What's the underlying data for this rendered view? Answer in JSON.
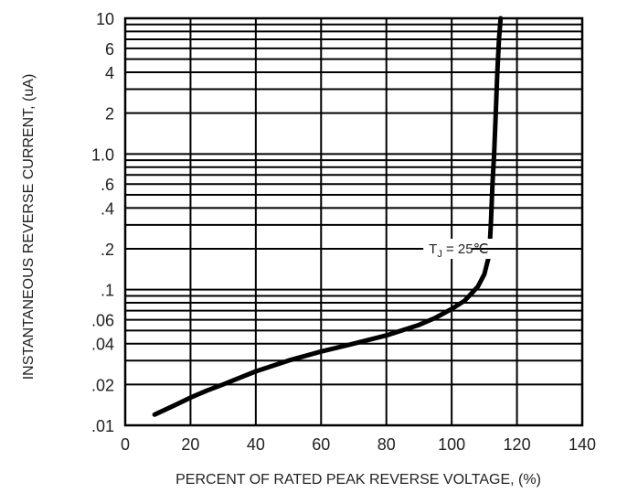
{
  "chart_data": {
    "type": "line",
    "title": "",
    "xlabel": "PERCENT OF RATED PEAK REVERSE VOLTAGE, (%)",
    "ylabel": "INSTANTANEOUS REVERSE CURRENT, (uA)",
    "xscale": "linear",
    "yscale": "log",
    "xlim": [
      0,
      140
    ],
    "ylim": [
      0.01,
      10
    ],
    "grid": true,
    "x_ticks": [
      0,
      20,
      40,
      60,
      80,
      100,
      120,
      140
    ],
    "x_tick_labels": [
      "0",
      "20",
      "40",
      "60",
      "80",
      "100",
      "120",
      "140"
    ],
    "y_ticks": [
      0.01,
      0.02,
      0.04,
      0.06,
      0.1,
      0.2,
      0.4,
      0.6,
      1.0,
      2,
      4,
      6,
      10
    ],
    "y_tick_labels": [
      ".01",
      ".02",
      ".04",
      ".06",
      ".1",
      ".2",
      ".4",
      ".6",
      "1.0",
      "2",
      "4",
      "6",
      "10"
    ],
    "y_grid_lines": [
      0.01,
      0.02,
      0.03,
      0.04,
      0.05,
      0.06,
      0.07,
      0.08,
      0.09,
      0.1,
      0.2,
      0.3,
      0.4,
      0.5,
      0.6,
      0.7,
      0.8,
      0.9,
      1.0,
      2,
      3,
      4,
      5,
      6,
      7,
      8,
      9,
      10
    ],
    "series": [
      {
        "x": [
          9,
          15,
          20,
          25,
          30,
          40,
          50,
          60,
          70,
          80,
          90,
          95,
          100,
          104,
          108,
          110,
          111.5,
          112,
          112.5,
          113,
          113.5,
          114,
          114.5,
          115
        ],
        "y": [
          0.012,
          0.014,
          0.016,
          0.018,
          0.02,
          0.025,
          0.03,
          0.035,
          0.04,
          0.046,
          0.055,
          0.062,
          0.072,
          0.083,
          0.105,
          0.13,
          0.18,
          0.3,
          0.6,
          1.0,
          2.0,
          4.0,
          7.0,
          10
        ]
      }
    ],
    "annotations": [
      {
        "text": "T",
        "subscript": "J",
        "suffix": " = 25℃",
        "x": 114,
        "y": 0.2
      }
    ],
    "colors": {
      "line": "#000000",
      "grid": "#000000",
      "text": "#222222"
    }
  }
}
